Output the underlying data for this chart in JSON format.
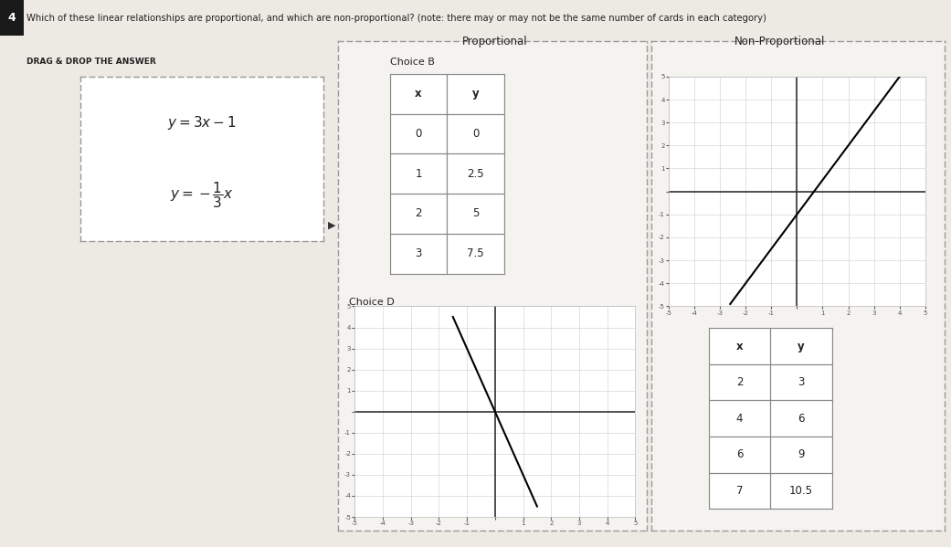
{
  "title": "Which of these linear relationships are proportional, and which are non-proportional? (note: there may or may not be the same number of cards in each category)",
  "drag_drop_label": "DRAG & DROP THE ANSWER",
  "question_num": "4",
  "proportional_label": "Proportional",
  "non_proportional_label": "Non-Proportional",
  "choice_b_label": "Choice B",
  "choice_b_table": {
    "headers": [
      "x",
      "y"
    ],
    "rows": [
      [
        0,
        0
      ],
      [
        1,
        2.5
      ],
      [
        2,
        5
      ],
      [
        3,
        7.5
      ]
    ]
  },
  "choice_d_label": "Choice D",
  "choice_d_slope": -3.0,
  "choice_d_intercept": 0,
  "non_prop_slope": 1.5,
  "non_prop_intercept": -1,
  "non_prop_table": {
    "headers": [
      "x",
      "y"
    ],
    "rows": [
      [
        2,
        3
      ],
      [
        4,
        6
      ],
      [
        6,
        9
      ],
      [
        7,
        10.5
      ]
    ]
  },
  "bg_color": "#ede9e3",
  "box_bg": "#f5f3ef",
  "white": "#ffffff",
  "dashed_color": "#999999",
  "text_color": "#222222",
  "grid_color": "#cccccc",
  "axis_color": "#333333",
  "table_border": "#888888"
}
